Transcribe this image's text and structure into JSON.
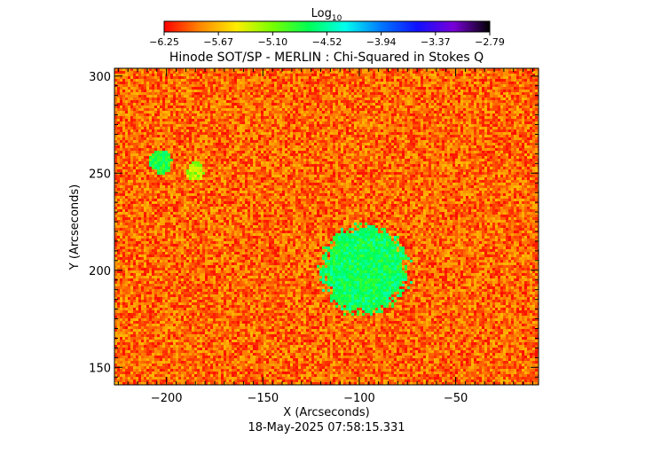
{
  "chart_data": {
    "type": "heatmap",
    "title": "Hinode SOT/SP - MERLIN : Chi-Squared in Stokes Q",
    "xlabel": "X (Arcseconds)",
    "ylabel": "Y (Arcseconds)",
    "timestamp": "18-May-2025 07:58:15.331",
    "xlim": [
      -227,
      -7
    ],
    "ylim": [
      141,
      304
    ],
    "x_ticks": [
      -200,
      -150,
      -100,
      -50
    ],
    "x_tick_labels": [
      "−200",
      "−150",
      "−100",
      "−50"
    ],
    "y_ticks": [
      150,
      200,
      250,
      300
    ],
    "y_tick_labels": [
      "150",
      "200",
      "250",
      "300"
    ],
    "colorbar": {
      "label_base": "Log",
      "label_sub": "10",
      "tick_labels": [
        "−6.25",
        "−5.67",
        "−5.10",
        "−4.52",
        "−3.94",
        "−3.37",
        "−2.79"
      ],
      "min": -6.25,
      "max": -2.79,
      "colors": [
        "#ff0000",
        "#ff8800",
        "#ffee00",
        "#77ff00",
        "#00ff55",
        "#00ffee",
        "#0077ff",
        "#1010ff",
        "#7a00d8",
        "#000000"
      ]
    },
    "background_level": -5.95,
    "features": [
      {
        "kind": "disk",
        "center": [
          -97,
          200
        ],
        "radius": 22,
        "level": -4.7
      },
      {
        "kind": "disk",
        "center": [
          -203,
          256
        ],
        "radius": 6,
        "level": -4.8
      },
      {
        "kind": "disk",
        "center": [
          -185,
          251
        ],
        "radius": 4.5,
        "level": -5.2
      }
    ]
  }
}
